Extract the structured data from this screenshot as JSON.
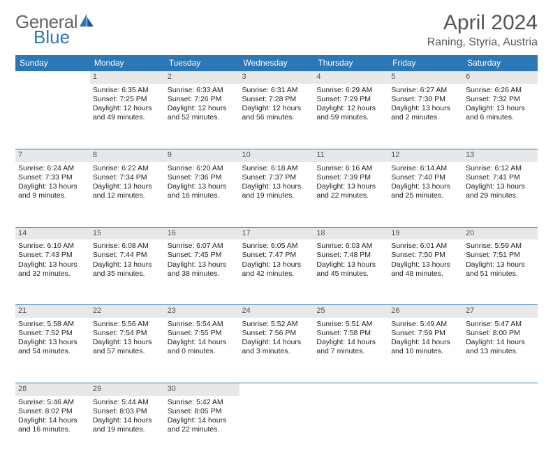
{
  "logo": {
    "general": "General",
    "blue": "Blue"
  },
  "title": "April 2024",
  "location": "Raning, Styria, Austria",
  "colors": {
    "header_bg": "#2a78b8",
    "header_text": "#ffffff",
    "daynum_bg": "#e8e8e8",
    "daynum_text": "#555555",
    "text": "#222222",
    "title_text": "#555555",
    "logo_gray": "#666666"
  },
  "dayNames": [
    "Sunday",
    "Monday",
    "Tuesday",
    "Wednesday",
    "Thursday",
    "Friday",
    "Saturday"
  ],
  "weeks": [
    {
      "nums": [
        "",
        "1",
        "2",
        "3",
        "4",
        "5",
        "6"
      ],
      "cells": [
        null,
        {
          "sr": "Sunrise: 6:35 AM",
          "ss": "Sunset: 7:25 PM",
          "d1": "Daylight: 12 hours",
          "d2": "and 49 minutes."
        },
        {
          "sr": "Sunrise: 6:33 AM",
          "ss": "Sunset: 7:26 PM",
          "d1": "Daylight: 12 hours",
          "d2": "and 52 minutes."
        },
        {
          "sr": "Sunrise: 6:31 AM",
          "ss": "Sunset: 7:28 PM",
          "d1": "Daylight: 12 hours",
          "d2": "and 56 minutes."
        },
        {
          "sr": "Sunrise: 6:29 AM",
          "ss": "Sunset: 7:29 PM",
          "d1": "Daylight: 12 hours",
          "d2": "and 59 minutes."
        },
        {
          "sr": "Sunrise: 6:27 AM",
          "ss": "Sunset: 7:30 PM",
          "d1": "Daylight: 13 hours",
          "d2": "and 2 minutes."
        },
        {
          "sr": "Sunrise: 6:26 AM",
          "ss": "Sunset: 7:32 PM",
          "d1": "Daylight: 13 hours",
          "d2": "and 6 minutes."
        }
      ]
    },
    {
      "nums": [
        "7",
        "8",
        "9",
        "10",
        "11",
        "12",
        "13"
      ],
      "cells": [
        {
          "sr": "Sunrise: 6:24 AM",
          "ss": "Sunset: 7:33 PM",
          "d1": "Daylight: 13 hours",
          "d2": "and 9 minutes."
        },
        {
          "sr": "Sunrise: 6:22 AM",
          "ss": "Sunset: 7:34 PM",
          "d1": "Daylight: 13 hours",
          "d2": "and 12 minutes."
        },
        {
          "sr": "Sunrise: 6:20 AM",
          "ss": "Sunset: 7:36 PM",
          "d1": "Daylight: 13 hours",
          "d2": "and 16 minutes."
        },
        {
          "sr": "Sunrise: 6:18 AM",
          "ss": "Sunset: 7:37 PM",
          "d1": "Daylight: 13 hours",
          "d2": "and 19 minutes."
        },
        {
          "sr": "Sunrise: 6:16 AM",
          "ss": "Sunset: 7:39 PM",
          "d1": "Daylight: 13 hours",
          "d2": "and 22 minutes."
        },
        {
          "sr": "Sunrise: 6:14 AM",
          "ss": "Sunset: 7:40 PM",
          "d1": "Daylight: 13 hours",
          "d2": "and 25 minutes."
        },
        {
          "sr": "Sunrise: 6:12 AM",
          "ss": "Sunset: 7:41 PM",
          "d1": "Daylight: 13 hours",
          "d2": "and 29 minutes."
        }
      ]
    },
    {
      "nums": [
        "14",
        "15",
        "16",
        "17",
        "18",
        "19",
        "20"
      ],
      "cells": [
        {
          "sr": "Sunrise: 6:10 AM",
          "ss": "Sunset: 7:43 PM",
          "d1": "Daylight: 13 hours",
          "d2": "and 32 minutes."
        },
        {
          "sr": "Sunrise: 6:08 AM",
          "ss": "Sunset: 7:44 PM",
          "d1": "Daylight: 13 hours",
          "d2": "and 35 minutes."
        },
        {
          "sr": "Sunrise: 6:07 AM",
          "ss": "Sunset: 7:45 PM",
          "d1": "Daylight: 13 hours",
          "d2": "and 38 minutes."
        },
        {
          "sr": "Sunrise: 6:05 AM",
          "ss": "Sunset: 7:47 PM",
          "d1": "Daylight: 13 hours",
          "d2": "and 42 minutes."
        },
        {
          "sr": "Sunrise: 6:03 AM",
          "ss": "Sunset: 7:48 PM",
          "d1": "Daylight: 13 hours",
          "d2": "and 45 minutes."
        },
        {
          "sr": "Sunrise: 6:01 AM",
          "ss": "Sunset: 7:50 PM",
          "d1": "Daylight: 13 hours",
          "d2": "and 48 minutes."
        },
        {
          "sr": "Sunrise: 5:59 AM",
          "ss": "Sunset: 7:51 PM",
          "d1": "Daylight: 13 hours",
          "d2": "and 51 minutes."
        }
      ]
    },
    {
      "nums": [
        "21",
        "22",
        "23",
        "24",
        "25",
        "26",
        "27"
      ],
      "cells": [
        {
          "sr": "Sunrise: 5:58 AM",
          "ss": "Sunset: 7:52 PM",
          "d1": "Daylight: 13 hours",
          "d2": "and 54 minutes."
        },
        {
          "sr": "Sunrise: 5:56 AM",
          "ss": "Sunset: 7:54 PM",
          "d1": "Daylight: 13 hours",
          "d2": "and 57 minutes."
        },
        {
          "sr": "Sunrise: 5:54 AM",
          "ss": "Sunset: 7:55 PM",
          "d1": "Daylight: 14 hours",
          "d2": "and 0 minutes."
        },
        {
          "sr": "Sunrise: 5:52 AM",
          "ss": "Sunset: 7:56 PM",
          "d1": "Daylight: 14 hours",
          "d2": "and 3 minutes."
        },
        {
          "sr": "Sunrise: 5:51 AM",
          "ss": "Sunset: 7:58 PM",
          "d1": "Daylight: 14 hours",
          "d2": "and 7 minutes."
        },
        {
          "sr": "Sunrise: 5:49 AM",
          "ss": "Sunset: 7:59 PM",
          "d1": "Daylight: 14 hours",
          "d2": "and 10 minutes."
        },
        {
          "sr": "Sunrise: 5:47 AM",
          "ss": "Sunset: 8:00 PM",
          "d1": "Daylight: 14 hours",
          "d2": "and 13 minutes."
        }
      ]
    },
    {
      "nums": [
        "28",
        "29",
        "30",
        "",
        "",
        "",
        ""
      ],
      "cells": [
        {
          "sr": "Sunrise: 5:46 AM",
          "ss": "Sunset: 8:02 PM",
          "d1": "Daylight: 14 hours",
          "d2": "and 16 minutes."
        },
        {
          "sr": "Sunrise: 5:44 AM",
          "ss": "Sunset: 8:03 PM",
          "d1": "Daylight: 14 hours",
          "d2": "and 19 minutes."
        },
        {
          "sr": "Sunrise: 5:42 AM",
          "ss": "Sunset: 8:05 PM",
          "d1": "Daylight: 14 hours",
          "d2": "and 22 minutes."
        },
        null,
        null,
        null,
        null
      ]
    }
  ]
}
